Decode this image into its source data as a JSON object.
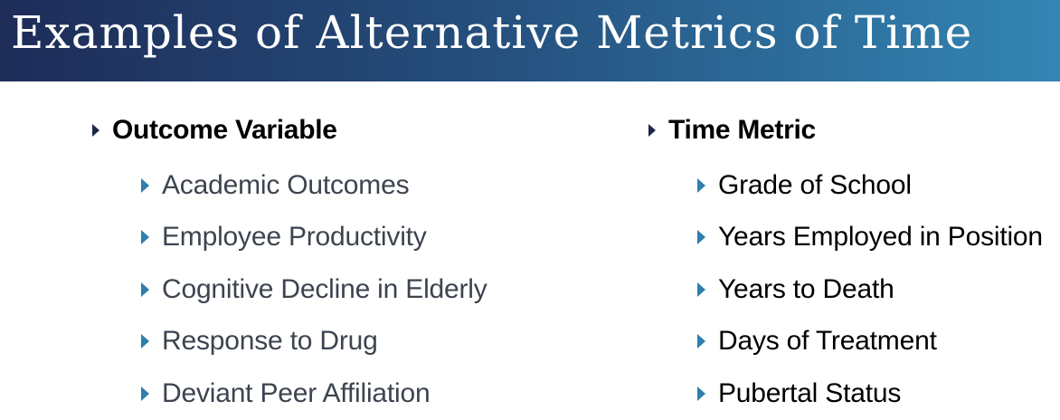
{
  "slide": {
    "title": "Examples of Alternative Metrics of Time"
  },
  "left_column": {
    "heading": "Outcome Variable",
    "items": [
      "Academic Outcomes",
      "Employee Productivity",
      "Cognitive Decline in Elderly",
      "Response to Drug",
      "Deviant Peer Affiliation"
    ]
  },
  "right_column": {
    "heading": "Time Metric",
    "items": [
      "Grade of School",
      "Years Employed in Position",
      "Years to Death",
      "Days of Treatment",
      "Pubertal Status"
    ]
  },
  "colors": {
    "title_gradient_start": "#1e2c58",
    "title_gradient_end": "#3386b4",
    "bullet_level1": "#1c2748",
    "bullet_level2": "#2e7fae"
  }
}
